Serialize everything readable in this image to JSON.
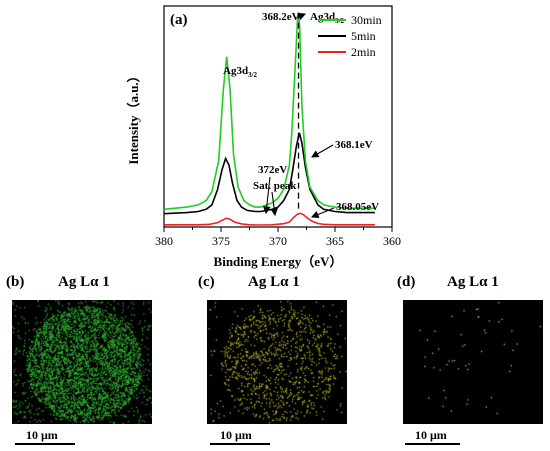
{
  "chart_data": {
    "type": "line",
    "panel_label": "(a)",
    "xlabel": "Binding Energy（eV）",
    "ylabel": "Intensity（a.u.）",
    "xlim": [
      380,
      360
    ],
    "x_reversed": true,
    "xticks": [
      380,
      375,
      370,
      365,
      360
    ],
    "grid": false,
    "legend_position": "top-right",
    "series": [
      {
        "name": "30min",
        "color": "#22cc22",
        "x": [
          380,
          378,
          377,
          376.3,
          375.8,
          375.2,
          374.8,
          374.5,
          374.2,
          373.9,
          373.5,
          373,
          372.5,
          372,
          371.5,
          371,
          370.5,
          370,
          369.5,
          369,
          368.8,
          368.5,
          368.3,
          368.2,
          368.1,
          367.9,
          367.6,
          367.2,
          366.5,
          366,
          365,
          364,
          363,
          362,
          361.5
        ],
        "y": [
          0.08,
          0.09,
          0.1,
          0.12,
          0.16,
          0.3,
          0.62,
          0.77,
          0.62,
          0.33,
          0.18,
          0.12,
          0.1,
          0.09,
          0.09,
          0.1,
          0.11,
          0.13,
          0.17,
          0.28,
          0.42,
          0.72,
          0.93,
          0.97,
          0.9,
          0.55,
          0.3,
          0.18,
          0.12,
          0.1,
          0.09,
          0.085,
          0.085,
          0.085,
          0.085
        ]
      },
      {
        "name": "5min",
        "color": "#000000",
        "x": [
          380,
          378,
          377,
          376.3,
          375.8,
          375.3,
          374.9,
          374.6,
          374.3,
          374,
          373.6,
          373.2,
          372.7,
          372,
          371.5,
          371,
          370.5,
          370,
          369.5,
          369,
          368.7,
          368.4,
          368.2,
          368.1,
          367.9,
          367.6,
          367.2,
          366.5,
          366,
          365,
          364,
          363,
          362,
          361.5
        ],
        "y": [
          0.06,
          0.065,
          0.07,
          0.08,
          0.1,
          0.17,
          0.26,
          0.31,
          0.28,
          0.2,
          0.12,
          0.09,
          0.075,
          0.07,
          0.07,
          0.075,
          0.08,
          0.09,
          0.12,
          0.17,
          0.26,
          0.36,
          0.41,
          0.42,
          0.38,
          0.27,
          0.17,
          0.1,
          0.08,
          0.07,
          0.065,
          0.065,
          0.065,
          0.065
        ]
      },
      {
        "name": "2min",
        "color": "#ee2222",
        "x": [
          380,
          377,
          376,
          375.3,
          374.8,
          374.5,
          374.2,
          373.8,
          373.2,
          372.5,
          371.5,
          370.5,
          369.5,
          369,
          368.6,
          368.3,
          368.05,
          367.8,
          367.4,
          367,
          366.5,
          366,
          365,
          364,
          363,
          362,
          361.5
        ],
        "y": [
          0.01,
          0.01,
          0.012,
          0.02,
          0.033,
          0.04,
          0.035,
          0.022,
          0.014,
          0.01,
          0.009,
          0.01,
          0.015,
          0.022,
          0.045,
          0.058,
          0.062,
          0.057,
          0.04,
          0.026,
          0.016,
          0.012,
          0.01,
          0.01,
          0.01,
          0.01,
          0.01
        ]
      }
    ],
    "annotations": [
      {
        "text": "368.2eV",
        "x": 368.2,
        "y": 0.97
      },
      {
        "text": "Ag3d",
        "sub": "3/2",
        "x": 368.2,
        "y": 0.97
      },
      {
        "text": "Ag3d",
        "sub": "3/2",
        "x": 374.5,
        "y": 0.77
      },
      {
        "text": "372eV",
        "x": 372,
        "y": 0.09
      },
      {
        "text": "Sat. peak",
        "x": 371.7,
        "y": 0.09
      },
      {
        "text": "368.1eV",
        "x": 368.1,
        "y": 0.42
      },
      {
        "text": "368.05eV",
        "x": 368.05,
        "y": 0.062
      }
    ]
  },
  "eds_maps": [
    {
      "label": "(b)",
      "title": "Ag  Lα 1",
      "color": "#33bb33",
      "scale": "10 μm",
      "density": 0.33
    },
    {
      "label": "(c)",
      "title": "Ag  Lα 1",
      "color": "#c8c832",
      "scale": "10 μm",
      "density": 0.09
    },
    {
      "label": "(d)",
      "title": "Ag  Lα 1",
      "color": "#dcdc5a",
      "scale": "10 μm",
      "density": 0.004
    }
  ]
}
